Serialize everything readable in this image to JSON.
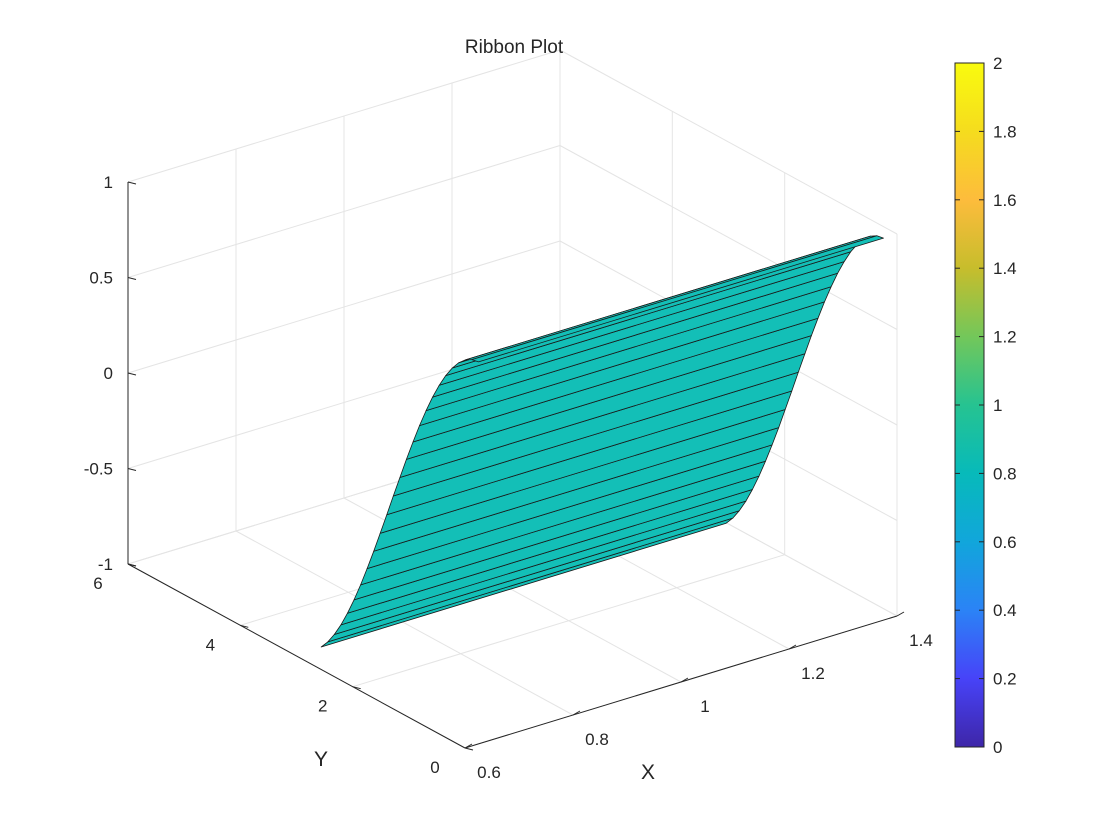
{
  "chart_data": {
    "type": "ribbon",
    "title": "Ribbon Plot",
    "xlabel": "X",
    "ylabel": "Y",
    "zlabel": "",
    "xlim": [
      0.6,
      1.4
    ],
    "ylim": [
      0,
      6
    ],
    "zlim": [
      -1,
      1
    ],
    "x_ticks": [
      "0.6",
      "0.8",
      "1",
      "1.2",
      "1.4"
    ],
    "y_ticks": [
      "0",
      "2",
      "4",
      "6"
    ],
    "z_ticks": [
      "-1",
      "-0.5",
      "0",
      "0.5",
      "1"
    ],
    "grid": true,
    "ribbon": {
      "center_x": 1,
      "width": 0.75,
      "y_range": [
        0,
        2.8
      ],
      "curve": "z = cos(y)",
      "face_value": 1
    },
    "colorbar": {
      "min": 0,
      "max": 2,
      "ticks": [
        "0",
        "0.2",
        "0.4",
        "0.6",
        "0.8",
        "1",
        "1.2",
        "1.4",
        "1.6",
        "1.8",
        "2"
      ],
      "colormap": [
        "#3e26a8",
        "#4743f8",
        "#2b83f6",
        "#11a6db",
        "#07baba",
        "#26c391",
        "#73c75a",
        "#c7bd2c",
        "#fdbc3c",
        "#f5dc1e",
        "#f9fb0e"
      ]
    },
    "face_color": "#13bfb7"
  }
}
